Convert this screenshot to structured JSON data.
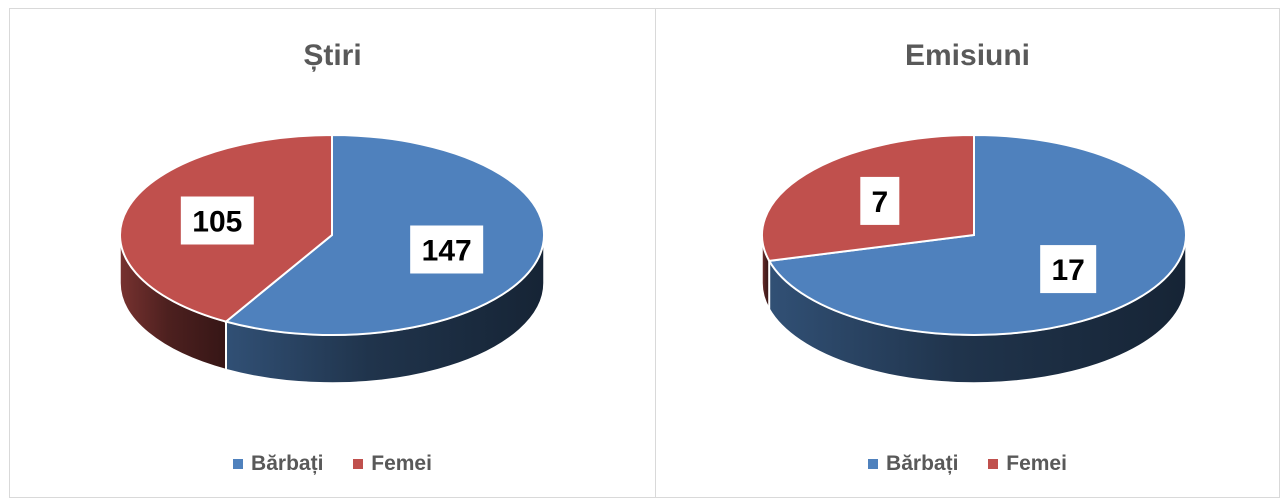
{
  "chart_data": [
    {
      "type": "pie",
      "title": "Știri",
      "categories": [
        "Bărbați",
        "Femei"
      ],
      "values": [
        147,
        105
      ],
      "colors": [
        "#4f81bd",
        "#c0504d"
      ],
      "data_labels": [
        "147",
        "105"
      ],
      "legend": "bottom",
      "style": "3d"
    },
    {
      "type": "pie",
      "title": "Emisiuni",
      "categories": [
        "Bărbați",
        "Femei"
      ],
      "values": [
        17,
        7
      ],
      "colors": [
        "#4f81bd",
        "#c0504d"
      ],
      "data_labels": [
        "17",
        "7"
      ],
      "legend": "bottom",
      "style": "3d"
    }
  ]
}
